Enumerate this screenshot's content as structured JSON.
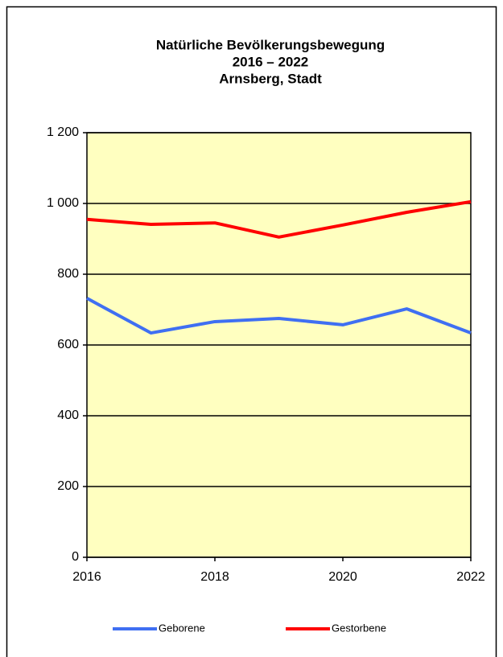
{
  "chart_data": {
    "type": "line",
    "title": [
      "Natürliche Bevölkerungsbewegung",
      "2016 – 2022",
      "Arnsberg, Stadt"
    ],
    "x": [
      2016,
      2017,
      2018,
      2019,
      2020,
      2021,
      2022
    ],
    "series": [
      {
        "name": "Geborene",
        "color": "#3f6ff2",
        "values": [
          732,
          634,
          666,
          675,
          657,
          702,
          634
        ]
      },
      {
        "name": "Gestorbene",
        "color": "#ff0000",
        "values": [
          955,
          941,
          945,
          905,
          939,
          975,
          1005
        ]
      }
    ],
    "xlim": [
      2016,
      2022
    ],
    "xticks": [
      2016,
      2018,
      2020,
      2022
    ],
    "ylim": [
      0,
      1200
    ],
    "yticks": [
      0,
      200,
      400,
      600,
      800,
      {
        "value": 1000,
        "label": "1 000"
      },
      {
        "value": 1200,
        "label": "1 200"
      }
    ],
    "grid": true,
    "plot_background": "#ffffc0",
    "legend": "bottom"
  }
}
